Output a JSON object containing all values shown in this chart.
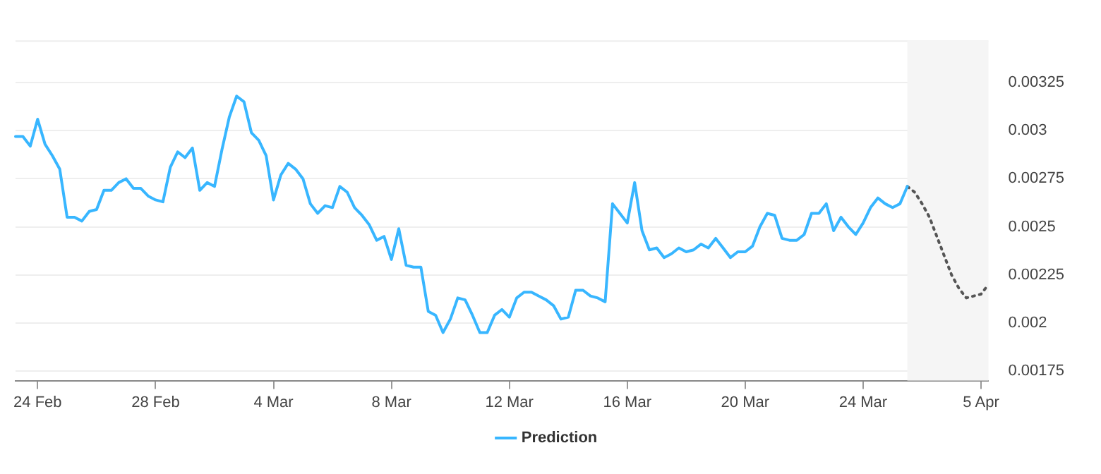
{
  "chart_data": {
    "type": "line",
    "ylim": [
      0.0017,
      0.00347
    ],
    "categories": [
      null,
      null,
      null,
      "24 Feb",
      null,
      null,
      null,
      null,
      null,
      null,
      null,
      null,
      null,
      null,
      null,
      null,
      null,
      null,
      null,
      "28 Feb",
      null,
      null,
      null,
      null,
      null,
      null,
      null,
      null,
      null,
      null,
      null,
      null,
      null,
      null,
      null,
      "4 Mar",
      null,
      null,
      null,
      null,
      null,
      null,
      null,
      null,
      null,
      null,
      null,
      null,
      null,
      null,
      null,
      "8 Mar",
      null,
      null,
      null,
      null,
      null,
      null,
      null,
      null,
      null,
      null,
      null,
      null,
      null,
      null,
      null,
      "12 Mar",
      null,
      null,
      null,
      null,
      null,
      null,
      null,
      null,
      null,
      null,
      null,
      null,
      null,
      null,
      null,
      "16 Mar",
      null,
      null,
      null,
      null,
      null,
      null,
      null,
      null,
      null,
      null,
      null,
      null,
      null,
      null,
      null,
      "20 Mar",
      null,
      null,
      null,
      null,
      null,
      null,
      null,
      null,
      null,
      null,
      null,
      null,
      null,
      null,
      null,
      "24 Mar",
      null,
      null,
      null,
      null,
      null,
      null,
      null,
      null,
      null,
      null,
      null,
      null,
      null,
      null,
      null,
      "5 Apr",
      null
    ],
    "yticks": [
      0.00175,
      0.002,
      0.00225,
      0.0025,
      0.00275,
      0.003,
      0.00325
    ],
    "grid": "y",
    "legend": "bottom",
    "marker": "none",
    "series": [
      {
        "name": "Prediction",
        "color": "#38b6ff",
        "line_style": "solid",
        "values": [
          0.00297,
          0.00297,
          0.00292,
          0.00306,
          0.00293,
          0.00287,
          0.0028,
          0.00255,
          0.00255,
          0.00253,
          0.00258,
          0.00259,
          0.00269,
          0.00269,
          0.00273,
          0.00275,
          0.0027,
          0.0027,
          0.00266,
          0.00264,
          0.00263,
          0.00281,
          0.00289,
          0.00286,
          0.00291,
          0.00269,
          0.00273,
          0.00271,
          0.0029,
          0.00307,
          0.00318,
          0.00315,
          0.00299,
          0.00295,
          0.00287,
          0.00264,
          0.00277,
          0.00283,
          0.0028,
          0.00275,
          0.00262,
          0.00257,
          0.00261,
          0.0026,
          0.00271,
          0.00268,
          0.0026,
          0.00256,
          0.00251,
          0.00243,
          0.00245,
          0.00233,
          0.00249,
          0.0023,
          0.00229,
          0.00229,
          0.00206,
          0.00204,
          0.00195,
          0.00202,
          0.00213,
          0.00212,
          0.00204,
          0.00195,
          0.00195,
          0.00204,
          0.00207,
          0.00203,
          0.00213,
          0.00216,
          0.00216,
          0.00214,
          0.00212,
          0.00209,
          0.00202,
          0.00203,
          0.00217,
          0.00217,
          0.00214,
          0.00213,
          0.00211,
          0.00262,
          0.00257,
          0.00252,
          0.00273,
          0.00248,
          0.00238,
          0.00239,
          0.00234,
          0.00236,
          0.00239,
          0.00237,
          0.00238,
          0.00241,
          0.00239,
          0.00244,
          0.00239,
          0.00234,
          0.00237,
          0.00237,
          0.0024,
          0.0025,
          0.00257,
          0.00256,
          0.00244,
          0.00243,
          0.00243,
          0.00246,
          0.00257,
          0.00257,
          0.00262,
          0.00248,
          0.00255,
          0.0025,
          0.00246,
          0.00252,
          0.0026,
          0.00265,
          0.00262,
          0.0026,
          0.00262,
          0.00271,
          null,
          null,
          null,
          null,
          null,
          null,
          null,
          null,
          null,
          null,
          null
        ]
      },
      {
        "color": "#555555",
        "line_style": "dotted",
        "values": [
          null,
          null,
          null,
          null,
          null,
          null,
          null,
          null,
          null,
          null,
          null,
          null,
          null,
          null,
          null,
          null,
          null,
          null,
          null,
          null,
          null,
          null,
          null,
          null,
          null,
          null,
          null,
          null,
          null,
          null,
          null,
          null,
          null,
          null,
          null,
          null,
          null,
          null,
          null,
          null,
          null,
          null,
          null,
          null,
          null,
          null,
          null,
          null,
          null,
          null,
          null,
          null,
          null,
          null,
          null,
          null,
          null,
          null,
          null,
          null,
          null,
          null,
          null,
          null,
          null,
          null,
          null,
          null,
          null,
          null,
          null,
          null,
          null,
          null,
          null,
          null,
          null,
          null,
          null,
          null,
          null,
          null,
          null,
          null,
          null,
          null,
          null,
          null,
          null,
          null,
          null,
          null,
          null,
          null,
          null,
          null,
          null,
          null,
          null,
          null,
          null,
          null,
          null,
          null,
          null,
          null,
          null,
          null,
          null,
          null,
          null,
          null,
          null,
          null,
          null,
          null,
          null,
          null,
          null,
          null,
          null,
          0.00271,
          0.00268,
          0.00262,
          0.00255,
          0.00245,
          0.00235,
          0.00225,
          0.00218,
          0.00213,
          0.00214,
          0.00215,
          0.0022
        ]
      }
    ]
  }
}
